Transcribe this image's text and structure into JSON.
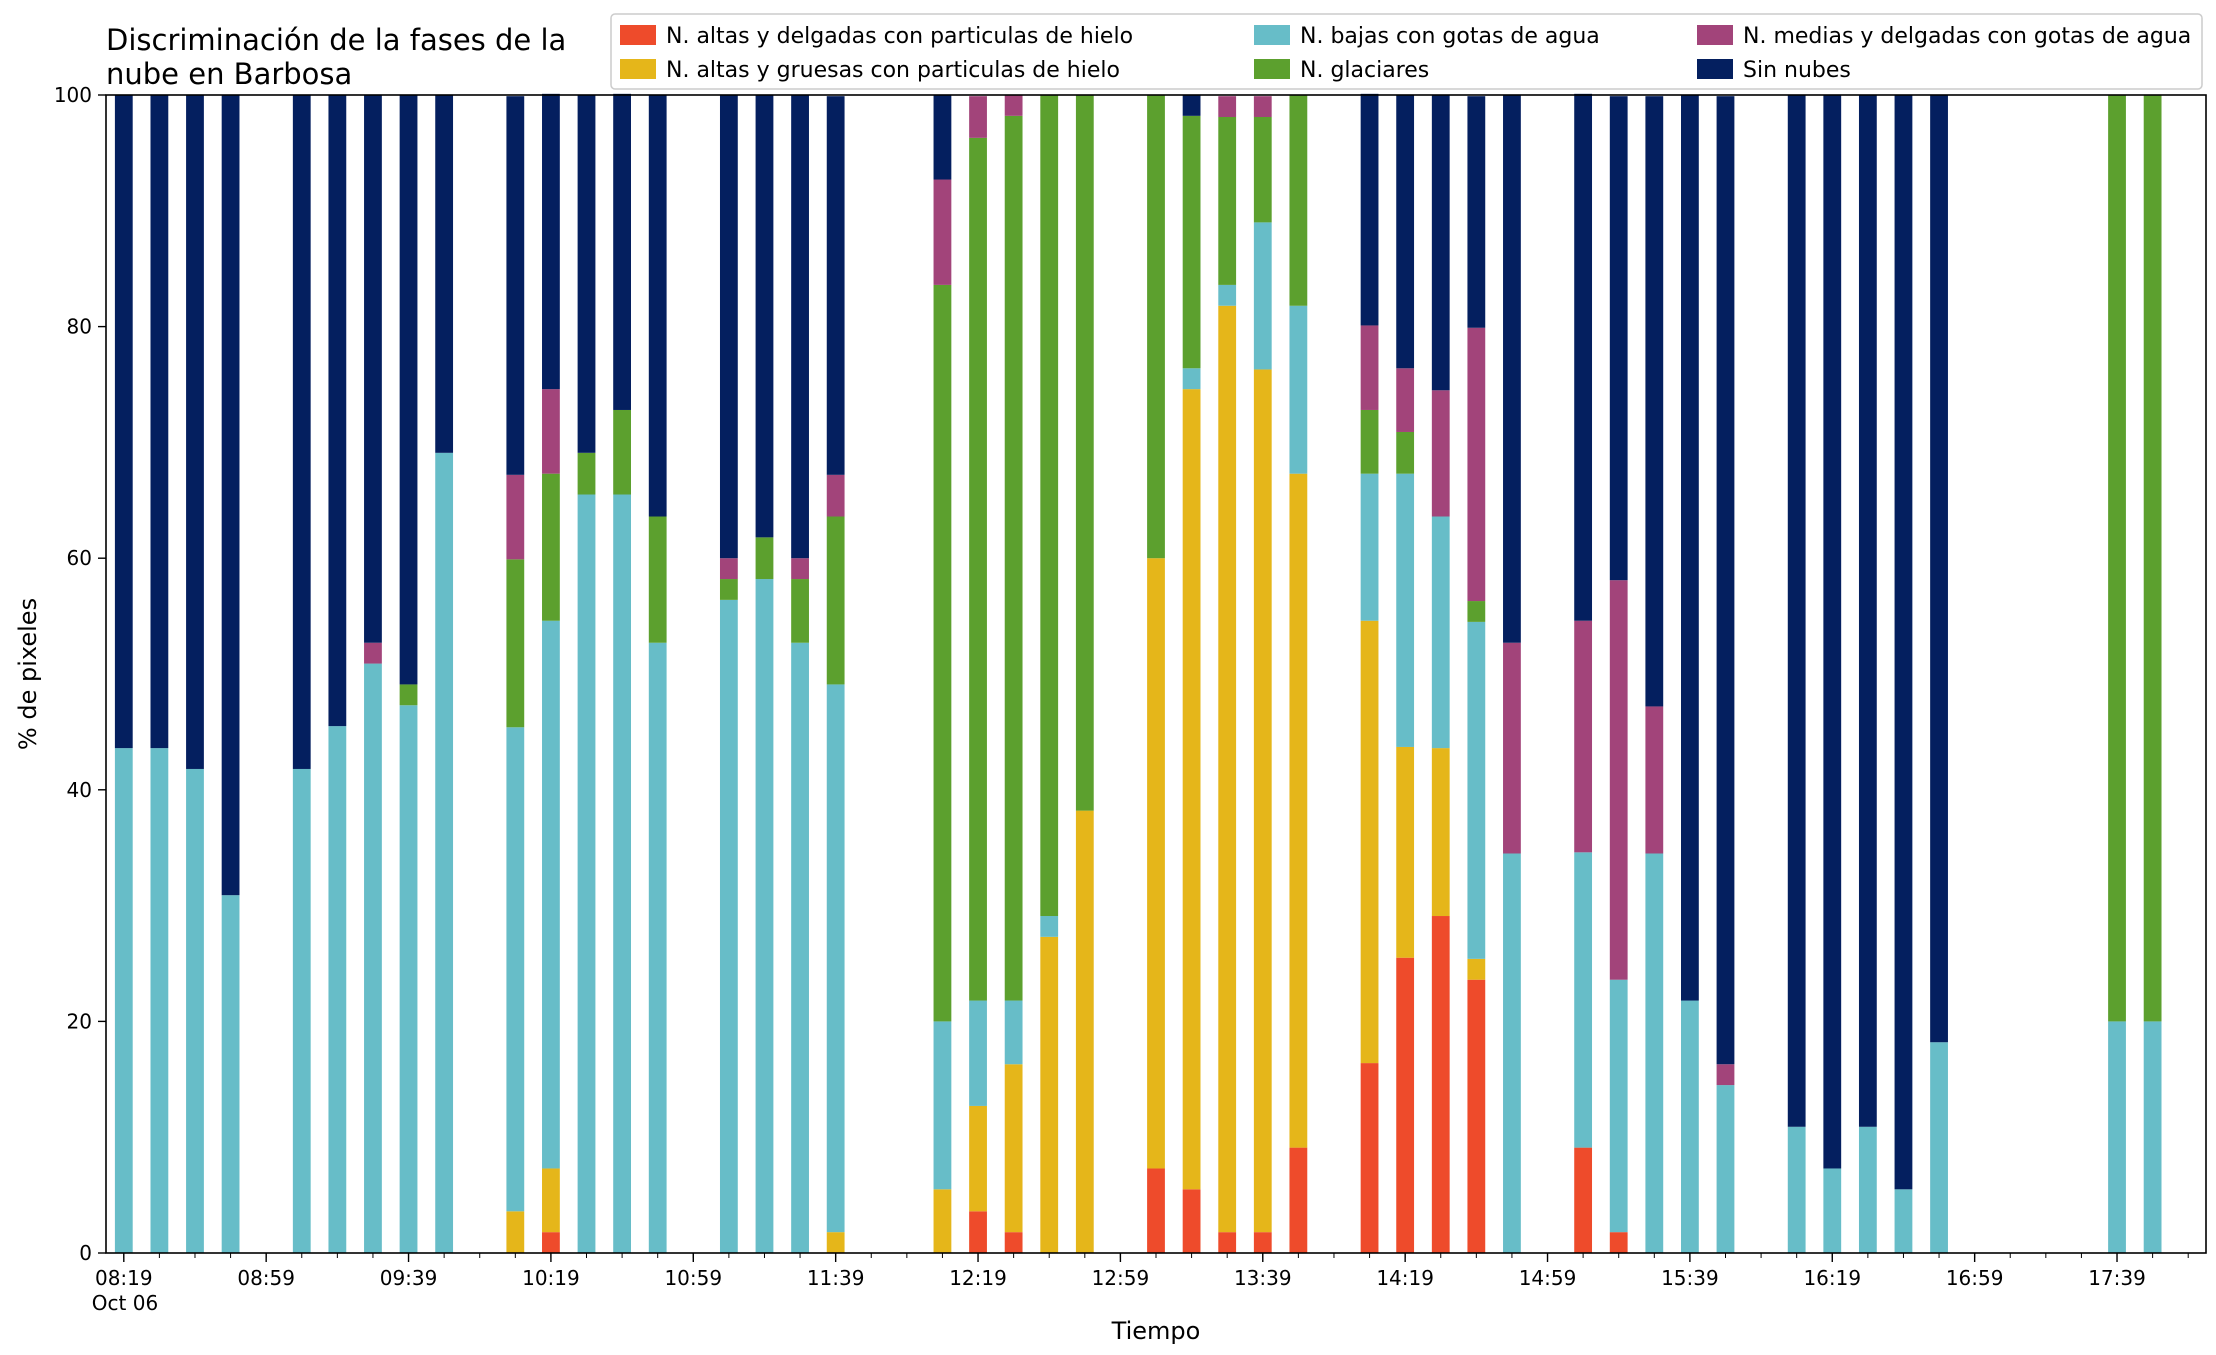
{
  "chart_data": {
    "type": "bar",
    "stacked": true,
    "title_lines": [
      "Discriminación de la fases de la",
      "nube en Barbosa"
    ],
    "xlabel": "Tiempo",
    "ylabel": "% de pixeles",
    "ylim": [
      0,
      100
    ],
    "yticks": [
      0,
      20,
      40,
      60,
      80,
      100
    ],
    "grid": false,
    "legend_position": "top-right",
    "xlim_slots": [
      -0.5,
      58.5
    ],
    "x_tick_labels": [
      {
        "slot": 0,
        "label": "08:19",
        "sub": "Oct 06"
      },
      {
        "slot": 4,
        "label": "08:59"
      },
      {
        "slot": 8,
        "label": "09:39"
      },
      {
        "slot": 12,
        "label": "10:19"
      },
      {
        "slot": 16,
        "label": "10:59"
      },
      {
        "slot": 20,
        "label": "11:39"
      },
      {
        "slot": 24,
        "label": "12:19"
      },
      {
        "slot": 28,
        "label": "12:59"
      },
      {
        "slot": 32,
        "label": "13:39"
      },
      {
        "slot": 36,
        "label": "14:19"
      },
      {
        "slot": 40,
        "label": "14:59"
      },
      {
        "slot": 44,
        "label": "15:39"
      },
      {
        "slot": 48,
        "label": "16:19"
      },
      {
        "slot": 52,
        "label": "16:59"
      },
      {
        "slot": 56,
        "label": "17:39"
      }
    ],
    "series": [
      {
        "name": "N. altas y delgadas con particulas de hielo",
        "color": "#EE4B2B"
      },
      {
        "name": "N. altas y gruesas con particulas de hielo",
        "color": "#E5B61A"
      },
      {
        "name": "N. bajas con gotas de agua",
        "color": "#67BDC8"
      },
      {
        "name": "N. glaciares",
        "color": "#5CA02E"
      },
      {
        "name": "N. medias y delgadas con gotas de agua",
        "color": "#A2447A"
      },
      {
        "name": "Sin nubes",
        "color": "#041F5F"
      }
    ],
    "series_order": [
      "altas_delgadas",
      "altas_gruesas",
      "bajas",
      "glaciares",
      "medias",
      "sin_nubes"
    ],
    "bars": [
      {
        "slot": 0,
        "values": [
          0,
          0,
          43.6,
          0,
          0,
          56.4
        ]
      },
      {
        "slot": 1,
        "values": [
          0,
          0,
          43.6,
          0,
          0,
          56.4
        ]
      },
      {
        "slot": 2,
        "values": [
          0,
          0,
          41.8,
          0,
          0,
          58.2
        ]
      },
      {
        "slot": 3,
        "values": [
          0,
          0,
          30.9,
          0,
          0,
          69.1
        ]
      },
      {
        "slot": 5,
        "values": [
          0,
          0,
          41.8,
          0,
          0,
          58.2
        ]
      },
      {
        "slot": 6,
        "values": [
          0,
          0,
          45.5,
          0,
          0,
          54.5
        ]
      },
      {
        "slot": 7,
        "values": [
          0,
          0,
          50.9,
          0,
          1.8,
          47.3
        ]
      },
      {
        "slot": 8,
        "values": [
          0,
          0,
          47.3,
          1.8,
          0,
          50.9
        ]
      },
      {
        "slot": 9,
        "values": [
          0,
          0,
          69.1,
          0,
          0,
          30.9
        ]
      },
      {
        "slot": 11,
        "values": [
          0,
          3.6,
          41.8,
          14.5,
          7.3,
          32.7
        ]
      },
      {
        "slot": 12,
        "values": [
          1.8,
          5.5,
          47.3,
          12.7,
          7.3,
          25.5
        ]
      },
      {
        "slot": 13,
        "values": [
          0,
          0,
          65.5,
          3.6,
          0,
          30.9
        ]
      },
      {
        "slot": 14,
        "values": [
          0,
          0,
          65.5,
          7.3,
          0,
          27.3
        ]
      },
      {
        "slot": 15,
        "values": [
          0,
          0,
          52.7,
          10.9,
          0,
          36.4
        ]
      },
      {
        "slot": 17,
        "values": [
          0,
          0,
          56.4,
          1.8,
          1.8,
          40.0
        ]
      },
      {
        "slot": 18,
        "values": [
          0,
          0,
          58.2,
          3.6,
          0,
          38.2
        ]
      },
      {
        "slot": 19,
        "values": [
          0,
          0,
          52.7,
          5.5,
          1.8,
          40.0
        ]
      },
      {
        "slot": 20,
        "values": [
          0,
          1.8,
          47.3,
          14.5,
          3.6,
          32.7
        ]
      },
      {
        "slot": 23,
        "values": [
          0,
          5.5,
          14.5,
          63.6,
          9.1,
          7.3
        ]
      },
      {
        "slot": 24,
        "values": [
          3.6,
          9.1,
          9.1,
          74.5,
          3.6,
          0
        ]
      },
      {
        "slot": 25,
        "values": [
          1.8,
          14.5,
          5.5,
          76.4,
          1.8,
          0
        ]
      },
      {
        "slot": 26,
        "values": [
          0,
          27.3,
          1.8,
          70.9,
          0,
          0
        ]
      },
      {
        "slot": 27,
        "values": [
          0,
          38.2,
          0,
          61.8,
          0,
          0
        ]
      },
      {
        "slot": 29,
        "values": [
          7.3,
          52.7,
          0,
          40.0,
          0,
          0
        ]
      },
      {
        "slot": 30,
        "values": [
          5.5,
          69.1,
          1.8,
          21.8,
          0,
          1.8
        ]
      },
      {
        "slot": 31,
        "values": [
          1.8,
          80.0,
          1.8,
          14.5,
          1.8,
          0
        ]
      },
      {
        "slot": 32,
        "values": [
          1.8,
          74.5,
          12.7,
          9.1,
          1.8,
          0
        ]
      },
      {
        "slot": 33,
        "values": [
          9.1,
          58.2,
          14.5,
          18.2,
          0,
          0
        ]
      },
      {
        "slot": 35,
        "values": [
          16.4,
          38.2,
          12.7,
          5.5,
          7.3,
          20.0
        ]
      },
      {
        "slot": 36,
        "values": [
          25.5,
          18.2,
          23.6,
          3.6,
          5.5,
          23.6
        ]
      },
      {
        "slot": 37,
        "values": [
          29.1,
          14.5,
          20.0,
          0,
          10.9,
          25.5
        ]
      },
      {
        "slot": 38,
        "values": [
          23.6,
          1.8,
          29.1,
          1.8,
          23.6,
          20.0
        ]
      },
      {
        "slot": 39,
        "values": [
          0,
          0,
          34.5,
          0,
          18.2,
          47.3
        ]
      },
      {
        "slot": 41,
        "values": [
          9.1,
          0,
          25.5,
          0,
          20.0,
          45.5
        ]
      },
      {
        "slot": 42,
        "values": [
          1.8,
          0,
          21.8,
          0,
          34.5,
          41.8
        ]
      },
      {
        "slot": 43,
        "values": [
          0,
          0,
          34.5,
          0,
          12.7,
          52.7
        ]
      },
      {
        "slot": 44,
        "values": [
          0,
          0,
          21.8,
          0,
          0,
          78.2
        ]
      },
      {
        "slot": 45,
        "values": [
          0,
          0,
          14.5,
          0,
          1.8,
          83.6
        ]
      },
      {
        "slot": 47,
        "values": [
          0,
          0,
          10.9,
          0,
          0,
          89.1
        ]
      },
      {
        "slot": 48,
        "values": [
          0,
          0,
          7.3,
          0,
          0,
          92.7
        ]
      },
      {
        "slot": 49,
        "values": [
          0,
          0,
          10.9,
          0,
          0,
          89.1
        ]
      },
      {
        "slot": 50,
        "values": [
          0,
          0,
          5.5,
          0,
          0,
          94.5
        ]
      },
      {
        "slot": 51,
        "values": [
          0,
          0,
          18.2,
          0,
          0,
          81.8
        ]
      },
      {
        "slot": 56,
        "values": [
          0,
          0,
          20.0,
          80.0,
          0,
          0
        ]
      },
      {
        "slot": 57,
        "values": [
          0,
          0,
          20.0,
          80.0,
          0,
          0
        ]
      }
    ]
  }
}
